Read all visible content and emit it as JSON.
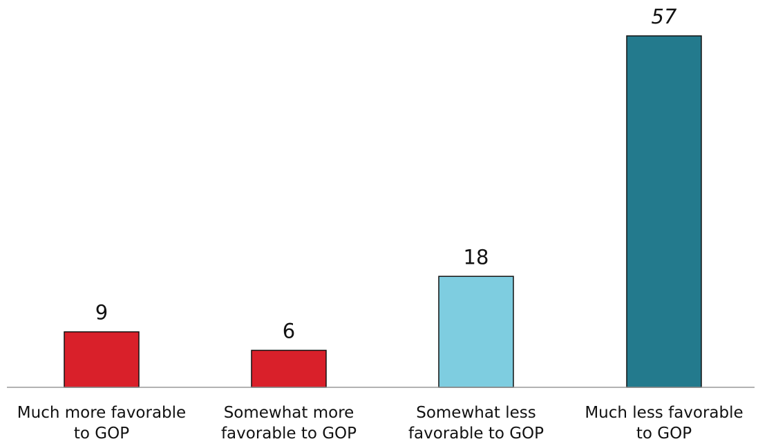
{
  "chart_data": {
    "type": "bar",
    "categories": [
      [
        "Much more favorable",
        "to GOP"
      ],
      [
        "Somewhat more",
        "favorable to GOP"
      ],
      [
        "Somewhat less",
        "favorable to GOP"
      ],
      [
        "Much less favorable",
        "to GOP"
      ]
    ],
    "values": [
      9,
      6,
      18,
      57
    ],
    "colors": [
      "#d9202a",
      "#d9202a",
      "#7ecde0",
      "#237a8d"
    ],
    "ylim": [
      0,
      60
    ],
    "grid": false,
    "legend": "none"
  }
}
